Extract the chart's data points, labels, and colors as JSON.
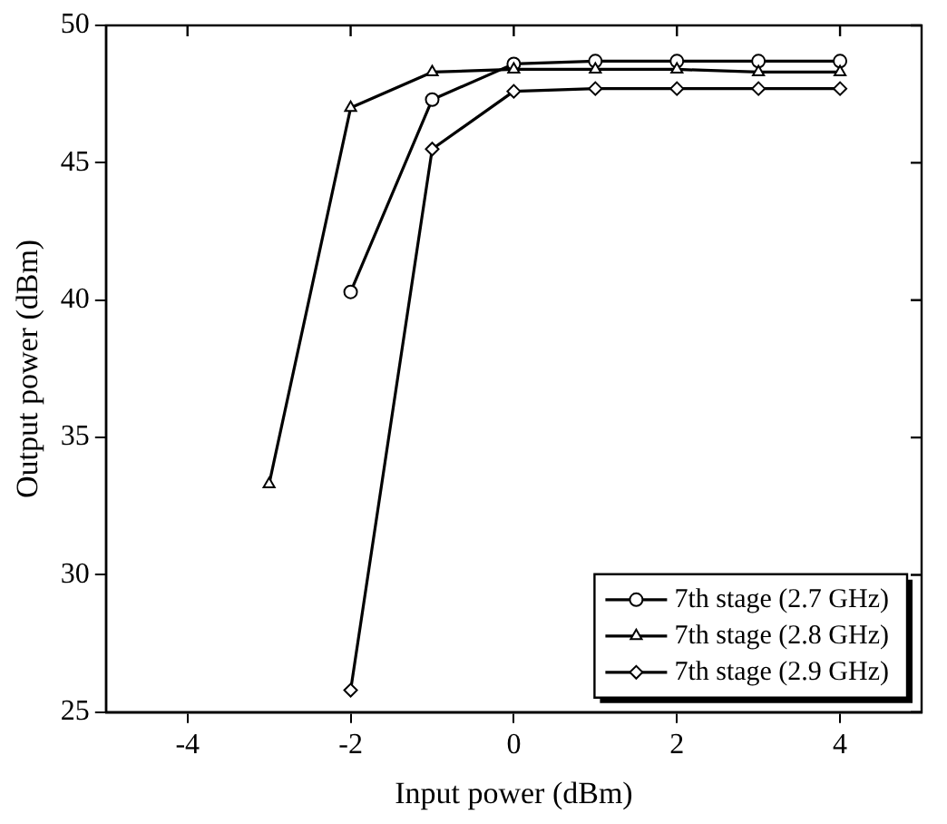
{
  "chart_data": {
    "type": "line",
    "xlabel": "Input power (dBm)",
    "ylabel": "Output power (dBm)",
    "xlim": [
      -5,
      5
    ],
    "xticks": [
      -4,
      -2,
      0,
      2,
      4
    ],
    "ylim": [
      25,
      50
    ],
    "yticks": [
      25,
      30,
      35,
      40,
      45,
      50
    ],
    "grid": false,
    "legend": "bottom right",
    "series": [
      {
        "name": "7th stage (2.7 GHz)",
        "color": "#000000",
        "marker": "circle",
        "x": [
          -2,
          -1,
          0,
          1,
          2,
          3,
          4
        ],
        "values": [
          40.3,
          47.3,
          48.6,
          48.7,
          48.7,
          48.7,
          48.7
        ]
      },
      {
        "name": "7th stage (2.8 GHz)",
        "color": "#000000",
        "marker": "triangle",
        "x": [
          -3,
          -2,
          -1,
          0,
          1,
          2,
          3,
          4
        ],
        "values": [
          33.3,
          47.0,
          48.3,
          48.4,
          48.4,
          48.4,
          48.3,
          48.3
        ]
      },
      {
        "name": "7th stage (2.9 GHz)",
        "color": "#000000",
        "marker": "diamond",
        "x": [
          -2,
          -1,
          0,
          1,
          2,
          3,
          4
        ],
        "values": [
          25.8,
          45.5,
          47.6,
          47.7,
          47.7,
          47.7,
          47.7
        ]
      }
    ]
  }
}
